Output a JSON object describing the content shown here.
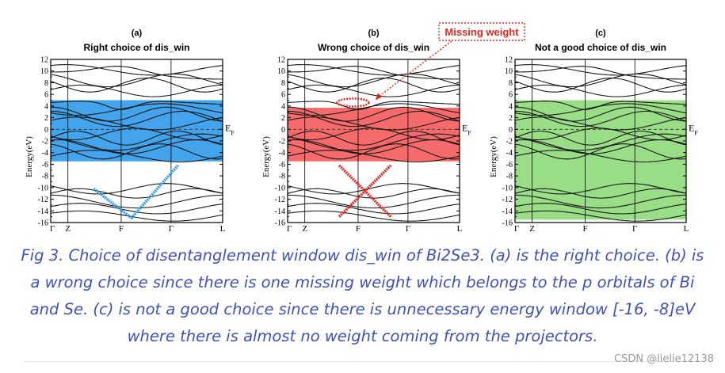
{
  "chart_data": [
    {
      "type": "line",
      "label": "(a)",
      "title": "Right choice of dis_win",
      "ylabel": "Energy(eV)",
      "ylim": [
        -16,
        12
      ],
      "yticks": [
        12,
        10,
        8,
        6,
        4,
        2,
        0,
        -2,
        -4,
        -6,
        -8,
        -10,
        -12,
        -14,
        -16
      ],
      "x_ticks": [
        "Γ",
        "Z",
        "F",
        "Γ",
        "L"
      ],
      "fermi_label": "EF",
      "window": {
        "emin": -5.5,
        "emax": 5.0,
        "color": "#2f9aea"
      },
      "mark": "check",
      "mark_color": "#2f9aea"
    },
    {
      "type": "line",
      "label": "(b)",
      "title": "Wrong choice of dis_win",
      "ylabel": "Energy(eV)",
      "ylim": [
        -16,
        12
      ],
      "yticks": [
        12,
        10,
        8,
        6,
        4,
        2,
        0,
        -2,
        -4,
        -6,
        -8,
        -10,
        -12,
        -14,
        -16
      ],
      "x_ticks": [
        "Γ",
        "Z",
        "F",
        "Γ",
        "L"
      ],
      "fermi_label": "EF",
      "window": {
        "emin": -5.5,
        "emax": 3.7,
        "color": "#f45b5b"
      },
      "mark": "cross",
      "mark_color": "#e0271f",
      "annotation": "Missing weight"
    },
    {
      "type": "line",
      "label": "(c)",
      "title": "Not a good choice of dis_win",
      "ylabel": "Energy(eV)",
      "ylim": [
        -16,
        12
      ],
      "yticks": [
        12,
        10,
        8,
        6,
        4,
        2,
        0,
        -2,
        -4,
        -6,
        -8,
        -10,
        -12,
        -14,
        -16
      ],
      "x_ticks": [
        "Γ",
        "Z",
        "F",
        "Γ",
        "L"
      ],
      "fermi_label": "EF",
      "window": {
        "emin": -15.5,
        "emax": 5.0,
        "color": "#8fd97a"
      },
      "mark": "none"
    }
  ],
  "caption": "Fig 3. Choice of disentanglement window dis_win of Bi2Se3. (a) is the right choice. (b) is a wrong choice since there is one missing weight which belongs to the p orbitals of Bi and Se. (c) is not a good choice since there is unnecessary energy window [-16, -8]eV where there is almost no weight coming from the projectors.",
  "watermark": "CSDN @lielie12138"
}
